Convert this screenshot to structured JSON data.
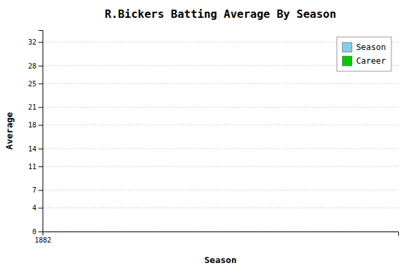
{
  "chart_data": {
    "type": "bar",
    "title": "R.Bickers Batting Average By Season",
    "xlabel": "Season",
    "ylabel": "Average",
    "x": [],
    "series": [
      {
        "name": "Season",
        "color": "#87CEEB",
        "values": []
      },
      {
        "name": "Career",
        "color": "#00cc00",
        "values": []
      }
    ],
    "xlim": [
      1882,
      1902
    ],
    "xticks": [
      1882
    ],
    "ylim": [
      0,
      34
    ],
    "yticks": [
      0,
      4,
      7,
      11,
      14,
      18,
      21,
      25,
      28,
      32
    ],
    "grid": "y",
    "legend": "upper right"
  }
}
